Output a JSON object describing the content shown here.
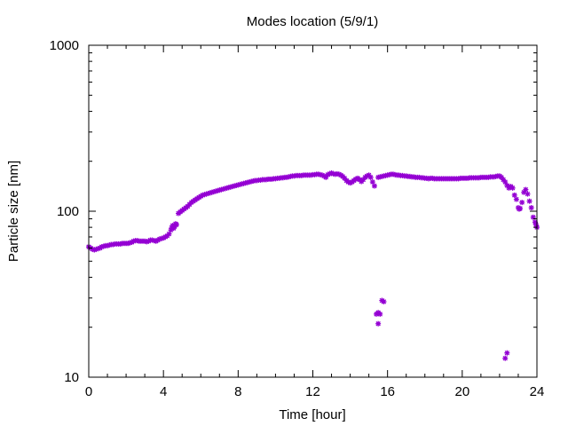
{
  "chart_data": {
    "type": "scatter",
    "title": "Modes location (5/9/1)",
    "xlabel": "Time [hour]",
    "ylabel": "Particle size [nm]",
    "xlim": [
      0,
      24
    ],
    "ylim": [
      10,
      1000
    ],
    "yscale": "log",
    "grid": false,
    "legend": "none",
    "marker": "asterisk",
    "colors": {
      "points": "#9400d3",
      "axes": "#000000",
      "background": "#ffffff"
    },
    "xticks": [
      {
        "value": 0,
        "label": "0"
      },
      {
        "value": 4,
        "label": "4"
      },
      {
        "value": 8,
        "label": "8"
      },
      {
        "value": 12,
        "label": "12"
      },
      {
        "value": 16,
        "label": "16"
      },
      {
        "value": 20,
        "label": "20"
      },
      {
        "value": 24,
        "label": "24"
      }
    ],
    "yticks": [
      {
        "value": 10,
        "label": "10"
      },
      {
        "value": 100,
        "label": "100"
      },
      {
        "value": 1000,
        "label": "1000"
      }
    ],
    "series": [
      {
        "points": [
          [
            0.0,
            61
          ],
          [
            0.1,
            60
          ],
          [
            0.2,
            59
          ],
          [
            0.3,
            58.5
          ],
          [
            0.4,
            59
          ],
          [
            0.5,
            59.5
          ],
          [
            0.6,
            60
          ],
          [
            0.7,
            61
          ],
          [
            0.8,
            61.5
          ],
          [
            0.9,
            62
          ],
          [
            1.0,
            62
          ],
          [
            1.1,
            62.5
          ],
          [
            1.2,
            63
          ],
          [
            1.3,
            63
          ],
          [
            1.4,
            63.5
          ],
          [
            1.5,
            63.5
          ],
          [
            1.6,
            63.5
          ],
          [
            1.7,
            63.5
          ],
          [
            1.8,
            64
          ],
          [
            1.9,
            64
          ],
          [
            2.0,
            64
          ],
          [
            2.1,
            64
          ],
          [
            2.2,
            64.5
          ],
          [
            2.3,
            65
          ],
          [
            2.4,
            66
          ],
          [
            2.5,
            66.5
          ],
          [
            2.6,
            66.5
          ],
          [
            2.7,
            66
          ],
          [
            2.8,
            66
          ],
          [
            2.9,
            66
          ],
          [
            3.0,
            66
          ],
          [
            3.1,
            65.5
          ],
          [
            3.2,
            66
          ],
          [
            3.3,
            67
          ],
          [
            3.4,
            67
          ],
          [
            3.5,
            66.5
          ],
          [
            3.6,
            66
          ],
          [
            3.7,
            67
          ],
          [
            3.8,
            68
          ],
          [
            3.9,
            68.5
          ],
          [
            4.0,
            69
          ],
          [
            4.1,
            70
          ],
          [
            4.2,
            71
          ],
          [
            4.3,
            73
          ],
          [
            4.4,
            77
          ],
          [
            4.45,
            80
          ],
          [
            4.5,
            82
          ],
          [
            4.55,
            79
          ],
          [
            4.6,
            81
          ],
          [
            4.65,
            84
          ],
          [
            4.7,
            83
          ],
          [
            4.8,
            97
          ],
          [
            4.9,
            99
          ],
          [
            5.0,
            101
          ],
          [
            5.1,
            103
          ],
          [
            5.2,
            105
          ],
          [
            5.3,
            107
          ],
          [
            5.4,
            110
          ],
          [
            5.5,
            113
          ],
          [
            5.6,
            115
          ],
          [
            5.7,
            117
          ],
          [
            5.8,
            119
          ],
          [
            5.9,
            121
          ],
          [
            6.0,
            123
          ],
          [
            6.1,
            125
          ],
          [
            6.2,
            126
          ],
          [
            6.3,
            127
          ],
          [
            6.4,
            128
          ],
          [
            6.5,
            129
          ],
          [
            6.6,
            130
          ],
          [
            6.7,
            131
          ],
          [
            6.8,
            132
          ],
          [
            6.9,
            133
          ],
          [
            7.0,
            134
          ],
          [
            7.1,
            135
          ],
          [
            7.2,
            136
          ],
          [
            7.3,
            137
          ],
          [
            7.4,
            138
          ],
          [
            7.5,
            139
          ],
          [
            7.6,
            140
          ],
          [
            7.7,
            141
          ],
          [
            7.8,
            142
          ],
          [
            7.9,
            143
          ],
          [
            8.0,
            144
          ],
          [
            8.1,
            145
          ],
          [
            8.2,
            146
          ],
          [
            8.3,
            147
          ],
          [
            8.4,
            148
          ],
          [
            8.5,
            149
          ],
          [
            8.6,
            150
          ],
          [
            8.7,
            151
          ],
          [
            8.8,
            152
          ],
          [
            8.9,
            153
          ],
          [
            9.0,
            153
          ],
          [
            9.1,
            154
          ],
          [
            9.2,
            154
          ],
          [
            9.3,
            155
          ],
          [
            9.4,
            155
          ],
          [
            9.5,
            155
          ],
          [
            9.6,
            156
          ],
          [
            9.7,
            156
          ],
          [
            9.8,
            156
          ],
          [
            9.9,
            157
          ],
          [
            10.0,
            157
          ],
          [
            10.1,
            158
          ],
          [
            10.2,
            158
          ],
          [
            10.3,
            159
          ],
          [
            10.4,
            159
          ],
          [
            10.5,
            160
          ],
          [
            10.6,
            160
          ],
          [
            10.7,
            161
          ],
          [
            10.8,
            162
          ],
          [
            10.9,
            163
          ],
          [
            11.0,
            163
          ],
          [
            11.1,
            164
          ],
          [
            11.2,
            164
          ],
          [
            11.3,
            164
          ],
          [
            11.4,
            164
          ],
          [
            11.5,
            165
          ],
          [
            11.6,
            165
          ],
          [
            11.7,
            165
          ],
          [
            11.8,
            165
          ],
          [
            11.9,
            165
          ],
          [
            12.0,
            166
          ],
          [
            12.1,
            166
          ],
          [
            12.2,
            167
          ],
          [
            12.3,
            167
          ],
          [
            12.4,
            166
          ],
          [
            12.5,
            165
          ],
          [
            12.6,
            163
          ],
          [
            12.7,
            160
          ],
          [
            12.8,
            166
          ],
          [
            12.9,
            168
          ],
          [
            13.0,
            170
          ],
          [
            13.1,
            168
          ],
          [
            13.2,
            167
          ],
          [
            13.3,
            168
          ],
          [
            13.4,
            167
          ],
          [
            13.5,
            165
          ],
          [
            13.6,
            162
          ],
          [
            13.7,
            158
          ],
          [
            13.8,
            153
          ],
          [
            13.9,
            150
          ],
          [
            14.0,
            148
          ],
          [
            14.1,
            150
          ],
          [
            14.2,
            153
          ],
          [
            14.3,
            156
          ],
          [
            14.4,
            158
          ],
          [
            14.5,
            155
          ],
          [
            14.6,
            151
          ],
          [
            14.7,
            155
          ],
          [
            14.8,
            160
          ],
          [
            14.9,
            163
          ],
          [
            15.0,
            165
          ],
          [
            15.1,
            160
          ],
          [
            15.2,
            150
          ],
          [
            15.3,
            142
          ],
          [
            15.5,
            160
          ],
          [
            15.6,
            161
          ],
          [
            15.7,
            162
          ],
          [
            15.8,
            163
          ],
          [
            15.9,
            164
          ],
          [
            16.0,
            165
          ],
          [
            16.1,
            166
          ],
          [
            16.2,
            167
          ],
          [
            16.3,
            167
          ],
          [
            16.4,
            166
          ],
          [
            16.5,
            165
          ],
          [
            16.6,
            165
          ],
          [
            16.7,
            164
          ],
          [
            16.8,
            164
          ],
          [
            16.9,
            163
          ],
          [
            17.0,
            163
          ],
          [
            17.1,
            162
          ],
          [
            17.2,
            162
          ],
          [
            17.3,
            161
          ],
          [
            17.4,
            161
          ],
          [
            17.5,
            160
          ],
          [
            17.6,
            160
          ],
          [
            17.7,
            160
          ],
          [
            17.8,
            159
          ],
          [
            17.9,
            159
          ],
          [
            18.0,
            158
          ],
          [
            18.1,
            158
          ],
          [
            18.2,
            157
          ],
          [
            18.3,
            158
          ],
          [
            18.4,
            158
          ],
          [
            18.5,
            157
          ],
          [
            18.6,
            157
          ],
          [
            18.7,
            157
          ],
          [
            18.8,
            157
          ],
          [
            18.9,
            157
          ],
          [
            19.0,
            157
          ],
          [
            19.1,
            157
          ],
          [
            19.2,
            157
          ],
          [
            19.3,
            157
          ],
          [
            19.4,
            157
          ],
          [
            19.5,
            157
          ],
          [
            19.6,
            157
          ],
          [
            19.7,
            157
          ],
          [
            19.8,
            157
          ],
          [
            19.9,
            158
          ],
          [
            20.0,
            158
          ],
          [
            20.1,
            158
          ],
          [
            20.2,
            158
          ],
          [
            20.3,
            158
          ],
          [
            20.4,
            159
          ],
          [
            20.5,
            159
          ],
          [
            20.6,
            159
          ],
          [
            20.7,
            159
          ],
          [
            20.8,
            159
          ],
          [
            20.9,
            159
          ],
          [
            21.0,
            160
          ],
          [
            21.1,
            160
          ],
          [
            21.2,
            160
          ],
          [
            21.3,
            160
          ],
          [
            21.4,
            160
          ],
          [
            21.5,
            161
          ],
          [
            21.6,
            161
          ],
          [
            21.7,
            161
          ],
          [
            21.8,
            162
          ],
          [
            21.9,
            163
          ],
          [
            22.0,
            163
          ],
          [
            22.1,
            160
          ],
          [
            22.2,
            155
          ],
          [
            22.3,
            150
          ],
          [
            22.4,
            143
          ],
          [
            22.5,
            138
          ],
          [
            22.6,
            141
          ],
          [
            22.7,
            138
          ],
          [
            22.8,
            125
          ],
          [
            22.9,
            118
          ],
          [
            23.0,
            105
          ],
          [
            23.05,
            103
          ],
          [
            23.1,
            104
          ],
          [
            23.2,
            113
          ],
          [
            23.3,
            130
          ],
          [
            23.4,
            135
          ],
          [
            23.5,
            127
          ],
          [
            23.6,
            115
          ],
          [
            23.7,
            105
          ],
          [
            23.8,
            92
          ],
          [
            23.9,
            86
          ],
          [
            24.0,
            80
          ],
          [
            23.95,
            83
          ],
          [
            15.4,
            24
          ],
          [
            15.5,
            24.5
          ],
          [
            15.6,
            24
          ],
          [
            15.5,
            21
          ],
          [
            15.7,
            29
          ],
          [
            15.8,
            28.5
          ],
          [
            22.3,
            13
          ],
          [
            22.4,
            14
          ]
        ]
      }
    ]
  }
}
